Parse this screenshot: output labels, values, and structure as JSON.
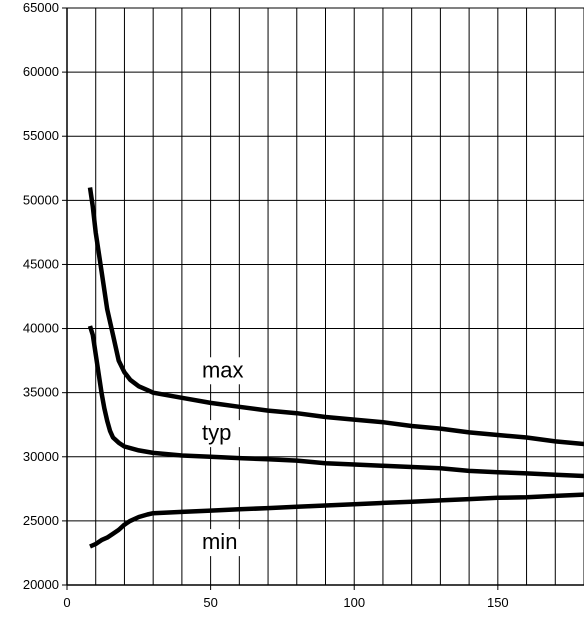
{
  "chart_data": {
    "type": "line",
    "title": "",
    "xlabel": "",
    "ylabel": "",
    "xlim": [
      0,
      180
    ],
    "ylim": [
      20000,
      65000
    ],
    "grid": true,
    "legend": "none",
    "x_ticks": [
      0,
      50,
      100,
      150
    ],
    "y_ticks": [
      20000,
      25000,
      30000,
      35000,
      40000,
      45000,
      50000,
      55000,
      60000,
      65000
    ],
    "x_grid_step": 10,
    "line_color": "#000000",
    "series": [
      {
        "name": "max",
        "points": [
          [
            8,
            51000
          ],
          [
            9,
            49500
          ],
          [
            10,
            47500
          ],
          [
            12,
            44500
          ],
          [
            14,
            41500
          ],
          [
            16,
            39500
          ],
          [
            18,
            37500
          ],
          [
            20,
            36600
          ],
          [
            22,
            36000
          ],
          [
            25,
            35500
          ],
          [
            28,
            35200
          ],
          [
            30,
            35000
          ],
          [
            40,
            34600
          ],
          [
            50,
            34200
          ],
          [
            60,
            33900
          ],
          [
            70,
            33600
          ],
          [
            80,
            33400
          ],
          [
            90,
            33100
          ],
          [
            100,
            32900
          ],
          [
            110,
            32700
          ],
          [
            120,
            32400
          ],
          [
            130,
            32200
          ],
          [
            140,
            31900
          ],
          [
            150,
            31700
          ],
          [
            160,
            31500
          ],
          [
            170,
            31200
          ],
          [
            180,
            31000
          ]
        ]
      },
      {
        "name": "typ",
        "points": [
          [
            8,
            40200
          ],
          [
            9,
            39500
          ],
          [
            10,
            38000
          ],
          [
            11,
            36500
          ],
          [
            12,
            35000
          ],
          [
            13,
            33800
          ],
          [
            14,
            32800
          ],
          [
            15,
            32000
          ],
          [
            16,
            31500
          ],
          [
            18,
            31100
          ],
          [
            20,
            30800
          ],
          [
            25,
            30500
          ],
          [
            30,
            30300
          ],
          [
            40,
            30100
          ],
          [
            50,
            30000
          ],
          [
            60,
            29900
          ],
          [
            70,
            29800
          ],
          [
            80,
            29700
          ],
          [
            90,
            29500
          ],
          [
            100,
            29400
          ],
          [
            110,
            29300
          ],
          [
            120,
            29200
          ],
          [
            130,
            29100
          ],
          [
            140,
            28900
          ],
          [
            150,
            28800
          ],
          [
            160,
            28700
          ],
          [
            170,
            28600
          ],
          [
            180,
            28500
          ]
        ]
      },
      {
        "name": "min",
        "points": [
          [
            8,
            23000
          ],
          [
            10,
            23200
          ],
          [
            12,
            23500
          ],
          [
            14,
            23700
          ],
          [
            16,
            24000
          ],
          [
            18,
            24300
          ],
          [
            20,
            24700
          ],
          [
            22,
            25000
          ],
          [
            25,
            25300
          ],
          [
            28,
            25500
          ],
          [
            30,
            25600
          ],
          [
            40,
            25700
          ],
          [
            50,
            25800
          ],
          [
            60,
            25900
          ],
          [
            70,
            26000
          ],
          [
            80,
            26100
          ],
          [
            90,
            26200
          ],
          [
            100,
            26300
          ],
          [
            110,
            26400
          ],
          [
            120,
            26500
          ],
          [
            130,
            26600
          ],
          [
            140,
            26700
          ],
          [
            150,
            26800
          ],
          [
            160,
            26850
          ],
          [
            170,
            26950
          ],
          [
            180,
            27050
          ]
        ]
      }
    ],
    "annotations": [
      {
        "text": "max",
        "x": 47,
        "y": 36200
      },
      {
        "text": "typ",
        "x": 47,
        "y": 31300
      },
      {
        "text": "min",
        "x": 47,
        "y": 22800
      }
    ]
  }
}
